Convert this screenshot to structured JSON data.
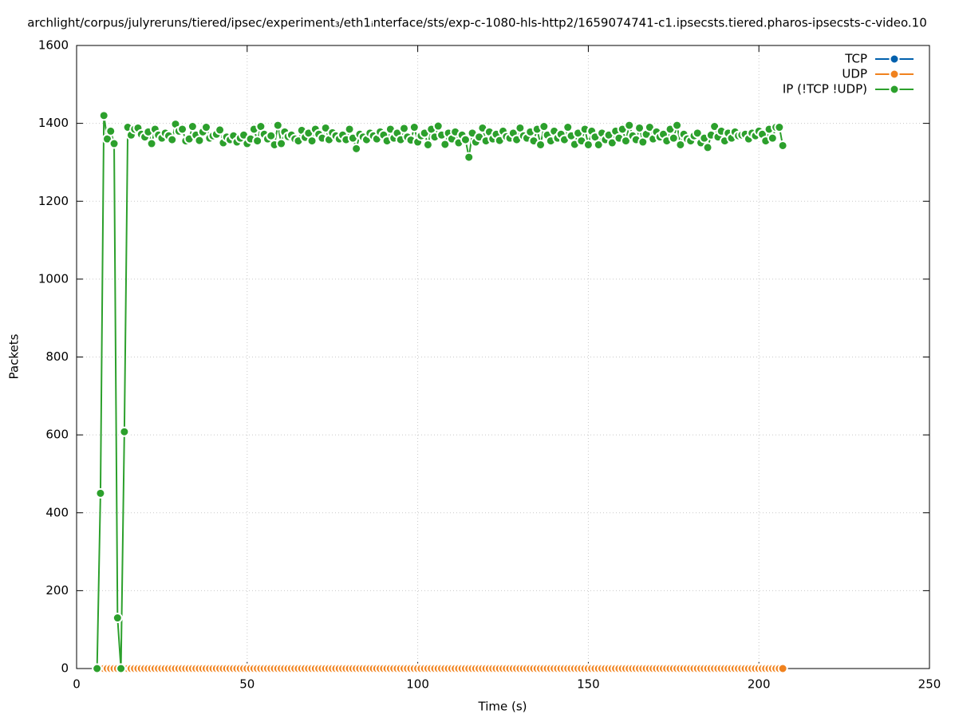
{
  "chart_data": {
    "type": "line",
    "title": "archlight/corpus/julyreruns/tiered/ipsec/experiment₃/eth1ᵢnterface/sts/exp-c-1080-hls-http2/1659074741-c1.ipsecsts.tiered.pharos-ipsecsts-c-video.10",
    "x_label": "Time (s)",
    "y_label": "Packets",
    "xlim": [
      0,
      250
    ],
    "xticks": [
      0,
      50,
      100,
      150,
      200,
      250
    ],
    "ylim": [
      0,
      1600
    ],
    "yticks": [
      0,
      200,
      400,
      600,
      800,
      1000,
      1200,
      1400,
      1600
    ],
    "grid": true,
    "legend": "top-right",
    "x": [
      6,
      7,
      8,
      9,
      10,
      11,
      12,
      13,
      14,
      15,
      16,
      17,
      18,
      19,
      20,
      21,
      22,
      23,
      24,
      25,
      26,
      27,
      28,
      29,
      30,
      31,
      32,
      33,
      34,
      35,
      36,
      37,
      38,
      39,
      40,
      41,
      42,
      43,
      44,
      45,
      46,
      47,
      48,
      49,
      50,
      51,
      52,
      53,
      54,
      55,
      56,
      57,
      58,
      59,
      60,
      61,
      62,
      63,
      64,
      65,
      66,
      67,
      68,
      69,
      70,
      71,
      72,
      73,
      74,
      75,
      76,
      77,
      78,
      79,
      80,
      81,
      82,
      83,
      84,
      85,
      86,
      87,
      88,
      89,
      90,
      91,
      92,
      93,
      94,
      95,
      96,
      97,
      98,
      99,
      100,
      101,
      102,
      103,
      104,
      105,
      106,
      107,
      108,
      109,
      110,
      111,
      112,
      113,
      114,
      115,
      116,
      117,
      118,
      119,
      120,
      121,
      122,
      123,
      124,
      125,
      126,
      127,
      128,
      129,
      130,
      131,
      132,
      133,
      134,
      135,
      136,
      137,
      138,
      139,
      140,
      141,
      142,
      143,
      144,
      145,
      146,
      147,
      148,
      149,
      150,
      151,
      152,
      153,
      154,
      155,
      156,
      157,
      158,
      159,
      160,
      161,
      162,
      163,
      164,
      165,
      166,
      167,
      168,
      169,
      170,
      171,
      172,
      173,
      174,
      175,
      176,
      177,
      178,
      179,
      180,
      181,
      182,
      183,
      184,
      185,
      186,
      187,
      188,
      189,
      190,
      191,
      192,
      193,
      194,
      195,
      196,
      197,
      198,
      199,
      200,
      201,
      202,
      203,
      204,
      205,
      206,
      207
    ],
    "series": [
      {
        "name": "TCP",
        "color": "#0060ad",
        "values": [
          0,
          0,
          0,
          0,
          0,
          0,
          0,
          0,
          0,
          0,
          0,
          0,
          0,
          0,
          0,
          0,
          0,
          0,
          0,
          0,
          0,
          0,
          0,
          0,
          0,
          0,
          0,
          0,
          0,
          0,
          0,
          0,
          0,
          0,
          0,
          0,
          0,
          0,
          0,
          0,
          0,
          0,
          0,
          0,
          0,
          0,
          0,
          0,
          0,
          0,
          0,
          0,
          0,
          0,
          0,
          0,
          0,
          0,
          0,
          0,
          0,
          0,
          0,
          0,
          0,
          0,
          0,
          0,
          0,
          0,
          0,
          0,
          0,
          0,
          0,
          0,
          0,
          0,
          0,
          0,
          0,
          0,
          0,
          0,
          0,
          0,
          0,
          0,
          0,
          0,
          0,
          0,
          0,
          0,
          0,
          0,
          0,
          0,
          0,
          0,
          0,
          0,
          0,
          0,
          0,
          0,
          0,
          0,
          0,
          0,
          0,
          0,
          0,
          0,
          0,
          0,
          0,
          0,
          0,
          0,
          0,
          0,
          0,
          0,
          0,
          0,
          0,
          0,
          0,
          0,
          0,
          0,
          0,
          0,
          0,
          0,
          0,
          0,
          0,
          0,
          0,
          0,
          0,
          0,
          0,
          0,
          0,
          0,
          0,
          0,
          0,
          0,
          0,
          0,
          0,
          0,
          0,
          0,
          0,
          0,
          0,
          0,
          0,
          0,
          0,
          0,
          0,
          0,
          0,
          0,
          0,
          0,
          0,
          0,
          0,
          0,
          0,
          0,
          0,
          0,
          0,
          0,
          0,
          0,
          0,
          0,
          0,
          0,
          0,
          0,
          0,
          0,
          0,
          0,
          0,
          0,
          0,
          0,
          0,
          0,
          0,
          0
        ]
      },
      {
        "name": "UDP",
        "color": "#f0821e",
        "values": [
          0,
          0,
          0,
          0,
          0,
          0,
          0,
          0,
          0,
          0,
          0,
          0,
          0,
          0,
          0,
          0,
          0,
          0,
          0,
          0,
          0,
          0,
          0,
          0,
          0,
          0,
          0,
          0,
          0,
          0,
          0,
          0,
          0,
          0,
          0,
          0,
          0,
          0,
          0,
          0,
          0,
          0,
          0,
          0,
          0,
          0,
          0,
          0,
          0,
          0,
          0,
          0,
          0,
          0,
          0,
          0,
          0,
          0,
          0,
          0,
          0,
          0,
          0,
          0,
          0,
          0,
          0,
          0,
          0,
          0,
          0,
          0,
          0,
          0,
          0,
          0,
          0,
          0,
          0,
          0,
          0,
          0,
          0,
          0,
          0,
          0,
          0,
          0,
          0,
          0,
          0,
          0,
          0,
          0,
          0,
          0,
          0,
          0,
          0,
          0,
          0,
          0,
          0,
          0,
          0,
          0,
          0,
          0,
          0,
          0,
          0,
          0,
          0,
          0,
          0,
          0,
          0,
          0,
          0,
          0,
          0,
          0,
          0,
          0,
          0,
          0,
          0,
          0,
          0,
          0,
          0,
          0,
          0,
          0,
          0,
          0,
          0,
          0,
          0,
          0,
          0,
          0,
          0,
          0,
          0,
          0,
          0,
          0,
          0,
          0,
          0,
          0,
          0,
          0,
          0,
          0,
          0,
          0,
          0,
          0,
          0,
          0,
          0,
          0,
          0,
          0,
          0,
          0,
          0,
          0,
          0,
          0,
          0,
          0,
          0,
          0,
          0,
          0,
          0,
          0,
          0,
          0,
          0,
          0,
          0,
          0,
          0,
          0,
          0,
          0,
          0,
          0,
          0,
          0,
          0,
          0,
          0,
          0,
          0,
          0,
          0,
          0
        ]
      },
      {
        "name": "IP (!TCP  !UDP)",
        "color": "#2ca02c",
        "values": [
          0,
          450,
          1420,
          1360,
          1380,
          1348,
          130,
          0,
          608,
          1390,
          1370,
          1385,
          1388,
          1372,
          1365,
          1378,
          1348,
          1385,
          1370,
          1362,
          1375,
          1368,
          1358,
          1398,
          1380,
          1385,
          1355,
          1360,
          1392,
          1370,
          1356,
          1378,
          1390,
          1362,
          1368,
          1372,
          1383,
          1350,
          1365,
          1358,
          1368,
          1352,
          1362,
          1370,
          1348,
          1360,
          1385,
          1355,
          1392,
          1372,
          1360,
          1368,
          1345,
          1395,
          1348,
          1378,
          1366,
          1370,
          1360,
          1355,
          1382,
          1364,
          1375,
          1355,
          1385,
          1372,
          1362,
          1388,
          1358,
          1376,
          1368,
          1360,
          1370,
          1358,
          1385,
          1362,
          1335,
          1372,
          1365,
          1358,
          1375,
          1368,
          1360,
          1378,
          1370,
          1355,
          1385,
          1362,
          1375,
          1358,
          1387,
          1365,
          1357,
          1390,
          1352,
          1368,
          1375,
          1345,
          1385,
          1365,
          1393,
          1370,
          1346,
          1375,
          1360,
          1378,
          1350,
          1370,
          1358,
          1313,
          1375,
          1352,
          1365,
          1388,
          1355,
          1378,
          1360,
          1372,
          1356,
          1380,
          1366,
          1362,
          1375,
          1358,
          1388,
          1368,
          1362,
          1378,
          1355,
          1385,
          1345,
          1392,
          1370,
          1355,
          1380,
          1362,
          1372,
          1358,
          1390,
          1368,
          1346,
          1375,
          1355,
          1385,
          1345,
          1380,
          1365,
          1345,
          1375,
          1358,
          1370,
          1350,
          1380,
          1362,
          1385,
          1355,
          1395,
          1368,
          1358,
          1388,
          1352,
          1372,
          1390,
          1360,
          1378,
          1365,
          1372,
          1355,
          1385,
          1362,
          1395,
          1345,
          1372,
          1360,
          1355,
          1368,
          1375,
          1350,
          1362,
          1338,
          1370,
          1392,
          1365,
          1380,
          1355,
          1375,
          1362,
          1378,
          1368,
          1370,
          1372,
          1360,
          1375,
          1368,
          1380,
          1372,
          1355,
          1385,
          1362,
          1390,
          1390,
          1343
        ]
      }
    ]
  }
}
